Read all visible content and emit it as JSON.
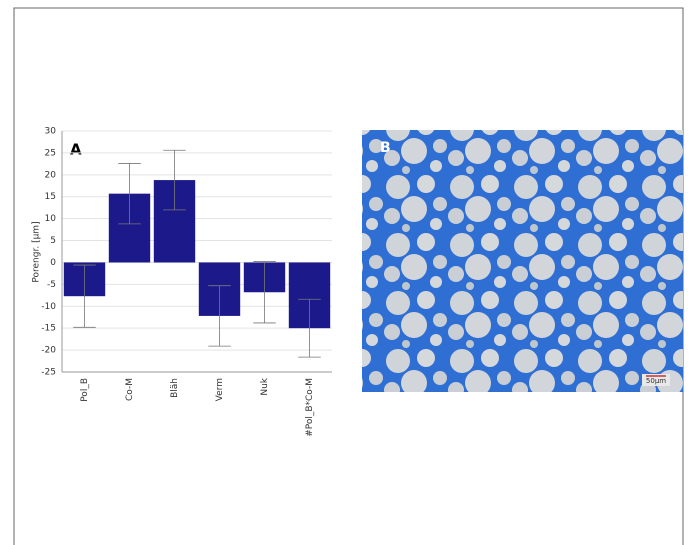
{
  "chart_data": {
    "type": "bar",
    "panel_label": "A",
    "ylabel": "Porengr. [µm]",
    "categories": [
      "Pol_B",
      "Co-M",
      "Bläh",
      "Verm",
      "Nuk",
      "#Pol_B*Co-M"
    ],
    "values": [
      -7.7,
      15.7,
      18.8,
      -12.2,
      -6.8,
      -15
    ],
    "errors": [
      7.1,
      6.9,
      6.8,
      6.9,
      7.0,
      6.6
    ],
    "color": "#1c1a8a",
    "ylim": [
      -25,
      30
    ],
    "yticks": [
      -25,
      -20,
      -15,
      -10,
      -5,
      0,
      5,
      10,
      15,
      20,
      25,
      30
    ],
    "grid": true
  },
  "figure_b": {
    "label": "B",
    "scale_bar": "50µm"
  }
}
